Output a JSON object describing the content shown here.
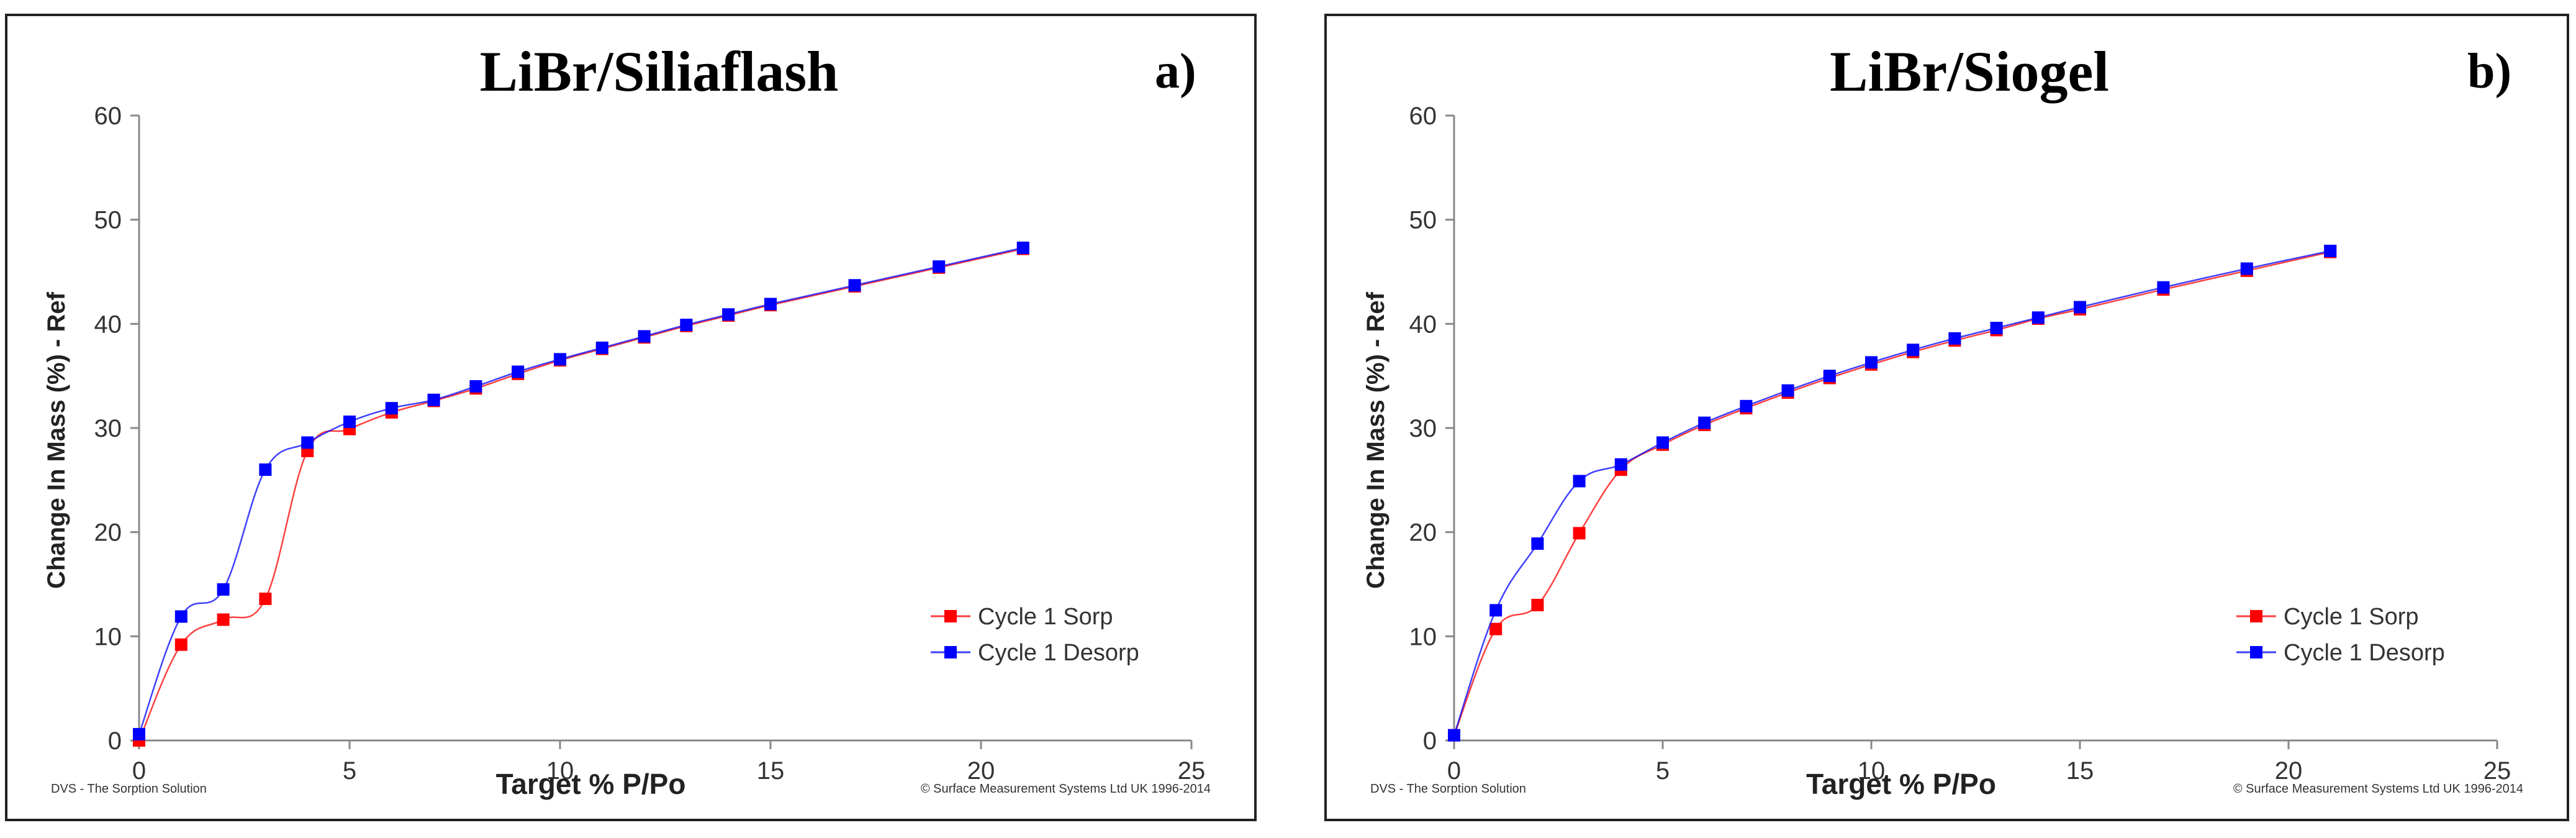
{
  "chart_data": [
    {
      "type": "line",
      "title": "LiBr/Siliaflash",
      "panel_label": "a)",
      "xlabel": "Target % P/Po",
      "ylabel": "Change In Mass (%) - Ref",
      "xlim": [
        0,
        25
      ],
      "ylim": [
        0,
        60
      ],
      "x_ticks": [
        0,
        5,
        10,
        15,
        20,
        25
      ],
      "y_ticks": [
        0,
        10,
        20,
        30,
        40,
        50,
        60
      ],
      "legend_position": "bottom-right",
      "footer_left": "DVS - The Sorption Solution",
      "footer_right": "© Surface Measurement Systems Ltd UK 1996-2014",
      "series": [
        {
          "name": "Cycle 1 Sorp",
          "color": "#ff0000",
          "x": [
            0,
            1,
            2,
            3,
            4,
            5,
            6,
            7,
            8,
            9,
            10,
            11,
            12,
            13,
            14,
            15,
            17,
            19,
            21
          ],
          "y": [
            0,
            9.2,
            11.6,
            13.6,
            27.8,
            29.9,
            31.5,
            32.6,
            33.8,
            35.2,
            36.5,
            37.6,
            38.7,
            39.8,
            40.8,
            41.8,
            43.6,
            45.4,
            47.2
          ]
        },
        {
          "name": "Cycle 1 Desorp",
          "color": "#0000ff",
          "x": [
            0,
            1,
            2,
            3,
            4,
            5,
            6,
            7,
            8,
            9,
            10,
            11,
            12,
            13,
            14,
            15,
            17,
            19,
            21
          ],
          "y": [
            0.6,
            11.9,
            14.5,
            26.0,
            28.6,
            30.6,
            31.9,
            32.7,
            34.0,
            35.4,
            36.6,
            37.7,
            38.8,
            39.9,
            40.9,
            41.9,
            43.7,
            45.5,
            47.3
          ]
        }
      ]
    },
    {
      "type": "line",
      "title": "LiBr/Siogel",
      "panel_label": "b)",
      "xlabel": "Target % P/Po",
      "ylabel": "Change In Mass (%) - Ref",
      "xlim": [
        0,
        25
      ],
      "ylim": [
        0,
        60
      ],
      "x_ticks": [
        0,
        5,
        10,
        15,
        20,
        25
      ],
      "y_ticks": [
        0,
        10,
        20,
        30,
        40,
        50,
        60
      ],
      "legend_position": "bottom-right",
      "footer_left": "DVS - The Sorption Solution",
      "footer_right": "© Surface Measurement Systems Ltd UK 1996-2014",
      "series": [
        {
          "name": "Cycle 1 Sorp",
          "color": "#ff0000",
          "x": [
            0,
            1,
            2,
            3,
            4,
            5,
            6,
            7,
            8,
            9,
            10,
            11,
            12,
            13,
            14,
            15,
            17,
            19,
            21
          ],
          "y": [
            0.5,
            10.7,
            13.0,
            19.9,
            26.0,
            28.4,
            30.3,
            31.9,
            33.4,
            34.8,
            36.1,
            37.3,
            38.4,
            39.4,
            40.5,
            41.4,
            43.3,
            45.1,
            46.9
          ]
        },
        {
          "name": "Cycle 1 Desorp",
          "color": "#0000ff",
          "x": [
            0,
            1,
            2,
            3,
            4,
            5,
            6,
            7,
            8,
            9,
            10,
            11,
            12,
            13,
            14,
            15,
            17,
            19,
            21
          ],
          "y": [
            0.5,
            12.5,
            18.9,
            24.9,
            26.5,
            28.6,
            30.5,
            32.1,
            33.6,
            35.0,
            36.3,
            37.5,
            38.6,
            39.6,
            40.6,
            41.6,
            43.5,
            45.3,
            47.0
          ]
        }
      ]
    }
  ]
}
